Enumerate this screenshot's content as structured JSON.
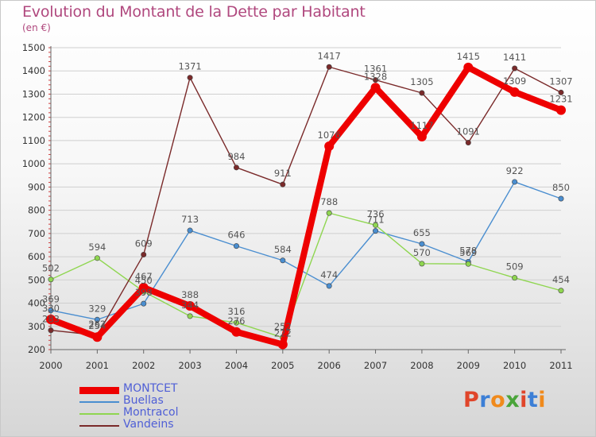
{
  "header": {
    "title": "Evolution du Montant de la Dette par Habitant",
    "subtitle": "(en €)"
  },
  "logo": {
    "chars": [
      "P",
      "r",
      "o",
      "x",
      "i",
      "t",
      "i"
    ],
    "colors": [
      "#e0452a",
      "#3c7fd6",
      "#f08a1c",
      "#4aa43a",
      "#e0452a",
      "#3c7fd6",
      "#f08a1c"
    ]
  },
  "chart_data": {
    "type": "line",
    "title": "Evolution du Montant de la Dette par Habitant",
    "ylabel": "(en €)",
    "xlabel": "",
    "ylim": [
      200,
      1500
    ],
    "yticks": [
      200,
      300,
      400,
      500,
      600,
      700,
      800,
      900,
      1000,
      1100,
      1200,
      1300,
      1400,
      1500
    ],
    "grid": "horizontal",
    "legend_position": "bottom-left",
    "x": [
      "2000",
      "2001",
      "2002",
      "2003",
      "2004",
      "2005",
      "2006",
      "2007",
      "2008",
      "2009",
      "2010",
      "2011"
    ],
    "series": [
      {
        "name": "MONTCET",
        "color": "#ee0000",
        "weight": "bold",
        "values": [
          330,
          254,
          467,
          388,
          276,
          222,
          1076,
          1328,
          1117,
          1415,
          1309,
          1231
        ]
      },
      {
        "name": "Buellas",
        "color": "#4a8ed0",
        "weight": "normal",
        "values": [
          369,
          329,
          398,
          713,
          646,
          584,
          474,
          711,
          655,
          578,
          922,
          850
        ]
      },
      {
        "name": "Montracol",
        "color": "#8fd650",
        "weight": "normal",
        "values": [
          502,
          594,
          450,
          344,
          316,
          252,
          788,
          736,
          570,
          569,
          509,
          454
        ]
      },
      {
        "name": "Vandeins",
        "color": "#7a2a2a",
        "weight": "normal",
        "values": [
          283,
          262,
          609,
          1371,
          984,
          911,
          1417,
          1361,
          1305,
          1091,
          1411,
          1307
        ]
      }
    ]
  }
}
